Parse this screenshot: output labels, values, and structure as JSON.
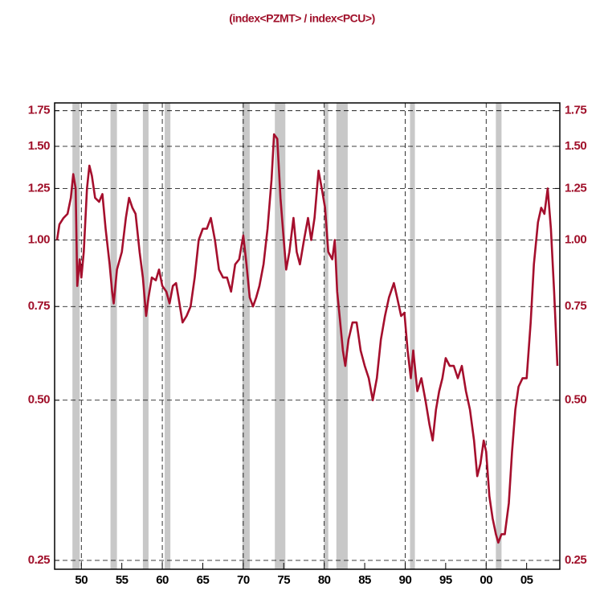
{
  "chart_data": {
    "type": "line",
    "title": "(index<PZMT> / index<PCU>)",
    "yscale": "log",
    "color": "#a50f2d",
    "label_color": "#a0102a",
    "grid": true,
    "xlim": [
      1946.7,
      2009.1
    ],
    "ylim": [
      0.2406,
      1.81
    ],
    "xticks": [
      {
        "value": 1950,
        "label": "50"
      },
      {
        "value": 1955,
        "label": "55"
      },
      {
        "value": 1960,
        "label": "60"
      },
      {
        "value": 1965,
        "label": "65"
      },
      {
        "value": 1970,
        "label": "70"
      },
      {
        "value": 1975,
        "label": "75"
      },
      {
        "value": 1980,
        "label": "80"
      },
      {
        "value": 1985,
        "label": "85"
      },
      {
        "value": 1990,
        "label": "90"
      },
      {
        "value": 1995,
        "label": "95"
      },
      {
        "value": 2000,
        "label": "00"
      },
      {
        "value": 2005,
        "label": "05"
      }
    ],
    "yticks": [
      {
        "value": 0.25,
        "label": "0.25"
      },
      {
        "value": 0.5,
        "label": "0.50"
      },
      {
        "value": 0.75,
        "label": "0.75"
      },
      {
        "value": 1,
        "label": "1.00"
      },
      {
        "value": 1.25,
        "label": "1.25"
      },
      {
        "value": 1.5,
        "label": "1.50"
      },
      {
        "value": 1.75,
        "label": "1.75"
      }
    ],
    "shading": [
      [
        1948.9,
        1949.8
      ],
      [
        1953.6,
        1954.4
      ],
      [
        1957.6,
        1958.3
      ],
      [
        1960.3,
        1961.0
      ],
      [
        1969.9,
        1970.8
      ],
      [
        1973.9,
        1975.2
      ],
      [
        1980.0,
        1980.5
      ],
      [
        1981.5,
        1982.9
      ],
      [
        1990.6,
        1991.2
      ],
      [
        2001.2,
        2001.9
      ]
    ],
    "x": [
      1947.0,
      1947.3,
      1947.8,
      1948.3,
      1948.7,
      1949.0,
      1949.3,
      1949.5,
      1949.8,
      1950.0,
      1950.3,
      1950.7,
      1951.0,
      1951.3,
      1951.7,
      1952.2,
      1952.6,
      1953.0,
      1953.5,
      1953.8,
      1954.0,
      1954.4,
      1955.0,
      1955.5,
      1955.9,
      1956.3,
      1956.7,
      1957.2,
      1957.6,
      1958.0,
      1958.3,
      1958.7,
      1959.2,
      1959.6,
      1960.0,
      1960.5,
      1960.9,
      1961.3,
      1961.7,
      1962.0,
      1962.5,
      1963.0,
      1963.5,
      1964.0,
      1964.5,
      1965.0,
      1965.5,
      1966.0,
      1966.5,
      1967.0,
      1967.5,
      1968.0,
      1968.5,
      1969.0,
      1969.5,
      1970.0,
      1970.4,
      1970.8,
      1971.2,
      1971.6,
      1972.0,
      1972.5,
      1973.0,
      1973.5,
      1973.8,
      1974.2,
      1974.6,
      1975.0,
      1975.3,
      1975.7,
      1976.2,
      1976.6,
      1977.0,
      1977.5,
      1978.0,
      1978.4,
      1978.8,
      1979.3,
      1979.7,
      1980.1,
      1980.5,
      1981.0,
      1981.3,
      1981.6,
      1981.9,
      1982.3,
      1982.6,
      1983.0,
      1983.5,
      1984.0,
      1984.5,
      1985.0,
      1985.5,
      1986.0,
      1986.5,
      1987.0,
      1987.5,
      1988.0,
      1988.6,
      1989.0,
      1989.5,
      1989.9,
      1990.3,
      1990.7,
      1991.0,
      1991.5,
      1992.0,
      1992.5,
      1993.0,
      1993.4,
      1993.8,
      1994.2,
      1994.6,
      1995.0,
      1995.5,
      1996.0,
      1996.5,
      1997.0,
      1997.5,
      1998.0,
      1998.5,
      1998.9,
      1999.3,
      1999.7,
      2000.0,
      2000.4,
      2000.8,
      2001.2,
      2001.5,
      2001.9,
      2002.3,
      2002.8,
      2003.2,
      2003.6,
      2004.0,
      2004.5,
      2005.0,
      2005.5,
      2005.9,
      2006.4,
      2006.8,
      2007.2,
      2007.6,
      2008.0,
      2008.4,
      2008.8
    ],
    "values": [
      1.0,
      1.07,
      1.1,
      1.12,
      1.2,
      1.33,
      1.25,
      0.82,
      0.92,
      0.85,
      0.95,
      1.25,
      1.38,
      1.32,
      1.2,
      1.18,
      1.22,
      1.05,
      0.9,
      0.8,
      0.76,
      0.88,
      0.95,
      1.1,
      1.2,
      1.15,
      1.12,
      0.95,
      0.85,
      0.72,
      0.78,
      0.85,
      0.84,
      0.88,
      0.82,
      0.8,
      0.76,
      0.82,
      0.83,
      0.78,
      0.7,
      0.72,
      0.75,
      0.85,
      1.0,
      1.05,
      1.05,
      1.1,
      1.0,
      0.88,
      0.85,
      0.85,
      0.8,
      0.9,
      0.92,
      1.02,
      0.9,
      0.78,
      0.75,
      0.78,
      0.82,
      0.9,
      1.05,
      1.3,
      1.58,
      1.55,
      1.2,
      1.0,
      0.88,
      0.95,
      1.1,
      0.95,
      0.9,
      1.0,
      1.1,
      1.0,
      1.1,
      1.35,
      1.25,
      1.15,
      0.95,
      0.92,
      1.0,
      0.8,
      0.72,
      0.62,
      0.58,
      0.65,
      0.7,
      0.7,
      0.62,
      0.58,
      0.55,
      0.5,
      0.55,
      0.65,
      0.72,
      0.78,
      0.83,
      0.78,
      0.72,
      0.73,
      0.62,
      0.55,
      0.62,
      0.52,
      0.55,
      0.5,
      0.45,
      0.42,
      0.48,
      0.52,
      0.55,
      0.6,
      0.58,
      0.58,
      0.55,
      0.58,
      0.52,
      0.48,
      0.42,
      0.36,
      0.38,
      0.42,
      0.4,
      0.33,
      0.3,
      0.28,
      0.27,
      0.28,
      0.28,
      0.32,
      0.4,
      0.48,
      0.53,
      0.55,
      0.55,
      0.7,
      0.9,
      1.08,
      1.15,
      1.12,
      1.25,
      1.05,
      0.8,
      0.58
    ]
  }
}
